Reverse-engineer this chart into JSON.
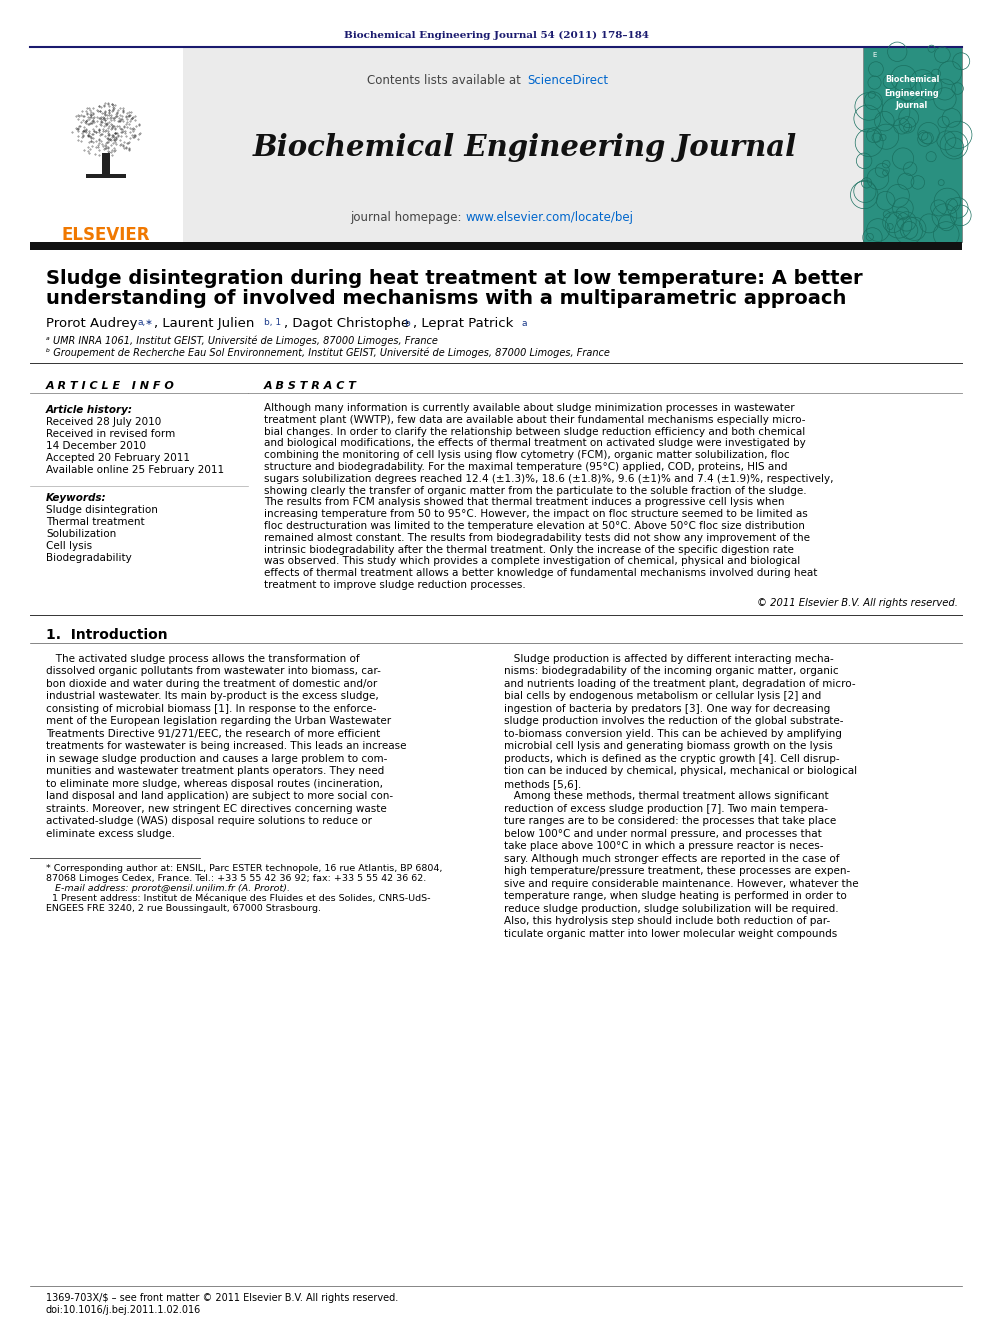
{
  "journal_header": "Biochemical Engineering Journal 54 (2011) 178–184",
  "journal_header_color": "#1a1a6e",
  "sciencedirect_color": "#0066cc",
  "homepage_url_color": "#0066cc",
  "elsevier_color": "#f07800",
  "header_bg": "#e8e8e8",
  "header_border_color": "#1a1a6e",
  "paper_title_line1": "Sludge disintegration during heat treatment at low temperature: A better",
  "paper_title_line2": "understanding of involved mechanisms with a multiparametric approach",
  "affil_a": "ᵃ UMR INRA 1061, Institut GEIST, Université de Limoges, 87000 Limoges, France",
  "affil_b": "ᵇ Groupement de Recherche Eau Sol Environnement, Institut GEIST, Université de Limoges, 87000 Limoges, France",
  "article_history_title": "Article history:",
  "article_history": [
    "Received 28 July 2010",
    "Received in revised form",
    "14 December 2010",
    "Accepted 20 February 2011",
    "Available online 25 February 2011"
  ],
  "keywords_title": "Keywords:",
  "keywords": [
    "Sludge disintegration",
    "Thermal treatment",
    "Solubilization",
    "Cell lysis",
    "Biodegradability"
  ],
  "abstract_text": [
    "Although many information is currently available about sludge minimization processes in wastewater",
    "treatment plant (WWTP), few data are available about their fundamental mechanisms especially micro-",
    "bial changes. In order to clarify the relationship between sludge reduction efficiency and both chemical",
    "and biological modifications, the effects of thermal treatment on activated sludge were investigated by",
    "combining the monitoring of cell lysis using flow cytometry (FCM), organic matter solubilization, floc",
    "structure and biodegradability. For the maximal temperature (95°C) applied, COD, proteins, HIS and",
    "sugars solubilization degrees reached 12.4 (±1.3)%, 18.6 (±1.8)%, 9.6 (±1)% and 7.4 (±1.9)%, respectively,",
    "showing clearly the transfer of organic matter from the particulate to the soluble fraction of the sludge.",
    "The results from FCM analysis showed that thermal treatment induces a progressive cell lysis when",
    "increasing temperature from 50 to 95°C. However, the impact on floc structure seemed to be limited as",
    "floc destructuration was limited to the temperature elevation at 50°C. Above 50°C floc size distribution",
    "remained almost constant. The results from biodegradability tests did not show any improvement of the",
    "intrinsic biodegradability after the thermal treatment. Only the increase of the specific digestion rate",
    "was observed. This study which provides a complete investigation of chemical, physical and biological",
    "effects of thermal treatment allows a better knowledge of fundamental mechanisms involved during heat",
    "treatment to improve sludge reduction processes."
  ],
  "copyright_line": "© 2011 Elsevier B.V. All rights reserved.",
  "intro_left": [
    "   The activated sludge process allows the transformation of",
    "dissolved organic pollutants from wastewater into biomass, car-",
    "bon dioxide and water during the treatment of domestic and/or",
    "industrial wastewater. Its main by-product is the excess sludge,",
    "consisting of microbial biomass [1]. In response to the enforce-",
    "ment of the European legislation regarding the Urban Wastewater",
    "Treatments Directive 91/271/EEC, the research of more efficient",
    "treatments for wastewater is being increased. This leads an increase",
    "in sewage sludge production and causes a large problem to com-",
    "munities and wastewater treatment plants operators. They need",
    "to eliminate more sludge, whereas disposal routes (incineration,",
    "land disposal and land application) are subject to more social con-",
    "straints. Moreover, new stringent EC directives concerning waste",
    "activated-sludge (WAS) disposal require solutions to reduce or",
    "eliminate excess sludge."
  ],
  "intro_right": [
    "   Sludge production is affected by different interacting mecha-",
    "nisms: biodegradability of the incoming organic matter, organic",
    "and nutrients loading of the treatment plant, degradation of micro-",
    "bial cells by endogenous metabolism or cellular lysis [2] and",
    "ingestion of bacteria by predators [3]. One way for decreasing",
    "sludge production involves the reduction of the global substrate-",
    "to-biomass conversion yield. This can be achieved by amplifying",
    "microbial cell lysis and generating biomass growth on the lysis",
    "products, which is defined as the cryptic growth [4]. Cell disrup-",
    "tion can be induced by chemical, physical, mechanical or biological",
    "methods [5,6].",
    "   Among these methods, thermal treatment allows significant",
    "reduction of excess sludge production [7]. Two main tempera-",
    "ture ranges are to be considered: the processes that take place",
    "below 100°C and under normal pressure, and processes that",
    "take place above 100°C in which a pressure reactor is neces-",
    "sary. Although much stronger effects are reported in the case of",
    "high temperature/pressure treatment, these processes are expen-",
    "sive and require considerable maintenance. However, whatever the",
    "temperature range, when sludge heating is performed in order to",
    "reduce sludge production, sludge solubilization will be required.",
    "Also, this hydrolysis step should include both reduction of par-",
    "ticulate organic matter into lower molecular weight compounds"
  ],
  "footnote_corr": "* Corresponding author at: ENSIL, Parc ESTER technopole, 16 rue Atlantis, BP 6804,",
  "footnote_corr2": "87068 Limoges Cedex, France. Tel.: +33 5 55 42 36 92; fax: +33 5 55 42 36 62.",
  "footnote_email": "   E-mail address: prorot@ensil.unilim.fr (A. Prorot).",
  "footnote_1a": "  1 Present address: Institut de Mécanique des Fluides et des Solides, CNRS-UdS-",
  "footnote_1b": "ENGEES FRE 3240, 2 rue Boussingault, 67000 Strasbourg.",
  "bottom_issn": "1369-703X/$ – see front matter © 2011 Elsevier B.V. All rights reserved.",
  "bottom_doi": "doi:10.1016/j.bej.2011.1.02.016",
  "bg_color": "#ffffff"
}
